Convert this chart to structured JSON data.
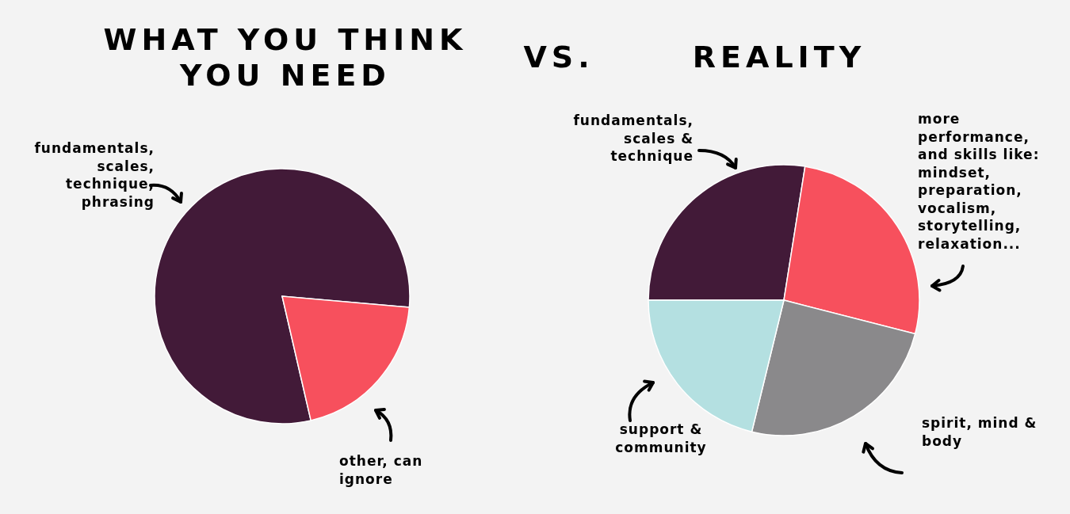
{
  "chart_data": [
    {
      "type": "pie",
      "title": "WHAT YOU THINK\nYOU NEED",
      "categories": [
        "fundamentals,\nscales,\ntechnique,\nphrasing",
        "other, can\nignore"
      ],
      "values": [
        80,
        20
      ],
      "colors": [
        "#421a38",
        "#f7505d"
      ],
      "annotations": [
        "VS."
      ]
    },
    {
      "type": "pie",
      "title": "REALITY",
      "categories": [
        "fundamentals,\nscales &\ntechnique",
        "more\nperformance,\nand skills like:\nmindset,\npreparation,\nvocalism,\nstorytelling,\nrelaxation...",
        "spirit, mind &\nbody",
        "support &\ncommunity"
      ],
      "values": [
        27.5,
        26.5,
        24.8,
        21.2
      ],
      "colors": [
        "#421a38",
        "#f7505d",
        "#8a898b",
        "#b4e0e1"
      ]
    }
  ]
}
